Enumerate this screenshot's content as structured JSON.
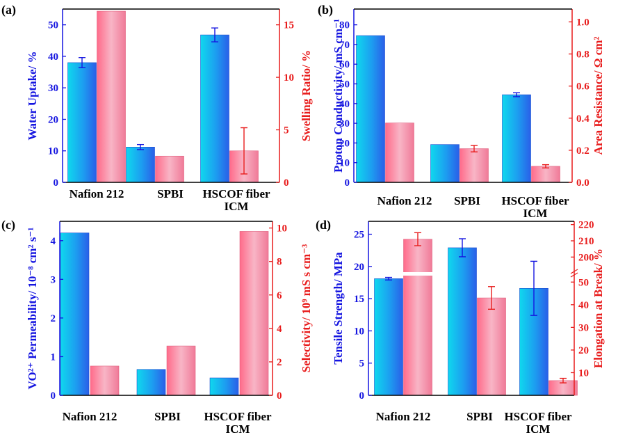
{
  "colors": {
    "blue_series": "#1ea8f0",
    "red_series": "#f5a3b8",
    "blue_axis": "#1515e0",
    "red_axis": "#e81c1c",
    "error_blue": "#1515e0",
    "error_red": "#e81c1c"
  },
  "chart_data": [
    {
      "panel": "(a)",
      "type": "bar",
      "categories": [
        "Nafion 212",
        "SPBI",
        "HSCOF fiber\nICM"
      ],
      "series": [
        {
          "name": "Water Uptake",
          "axis": "left",
          "values": [
            38,
            11.2,
            46.8
          ],
          "errors": [
            1.6,
            0.8,
            2.2
          ]
        },
        {
          "name": "Swelling Ratio",
          "axis": "right",
          "values": [
            16.3,
            2.5,
            3.0
          ],
          "errors": [
            0,
            0,
            2.2
          ]
        }
      ],
      "ylabel": "Water Uptake/ %",
      "ylim": [
        0,
        55
      ],
      "yticks": [
        0,
        10,
        20,
        30,
        40,
        50
      ],
      "y2label": "Swelling Ratio/ %",
      "y2lim": [
        0,
        16.5
      ],
      "y2ticks": [
        0,
        5,
        10,
        15
      ]
    },
    {
      "panel": "(b)",
      "type": "bar",
      "categories": [
        "Nafion 212",
        "SPBI",
        "HSCOF fiber\nICM"
      ],
      "series": [
        {
          "name": "Proton Conductivity",
          "axis": "left",
          "values": [
            74.5,
            19.2,
            44.5
          ],
          "errors": [
            0,
            0,
            1.0
          ]
        },
        {
          "name": "Area Resistance",
          "axis": "right",
          "values": [
            0.37,
            0.21,
            0.1
          ],
          "errors": [
            0,
            0.02,
            0.01
          ]
        }
      ],
      "ylabel": "Proton Conductivity/ mS cm⁻¹",
      "ylim": [
        0,
        88
      ],
      "yticks": [
        0,
        10,
        20,
        30,
        40,
        50,
        60,
        70,
        80
      ],
      "y2label": "Area Resistance/ Ω cm²",
      "y2lim": [
        0,
        1.08
      ],
      "y2ticks": [
        "0.0",
        "0.2",
        "0.4",
        "0.6",
        "0.8",
        "1.0"
      ]
    },
    {
      "panel": "(c)",
      "type": "bar",
      "categories": [
        "Nafion 212",
        "SPBI",
        "HSCOF fiber\nICM"
      ],
      "series": [
        {
          "name": "VO2+ Permeability",
          "axis": "left",
          "values": [
            4.2,
            0.67,
            0.45
          ],
          "errors": [
            0,
            0,
            0
          ]
        },
        {
          "name": "Selectivity",
          "axis": "right",
          "values": [
            1.75,
            2.95,
            9.8
          ],
          "errors": [
            0,
            0,
            0
          ]
        }
      ],
      "ylabel": "VO²⁺ Permeability/ 10⁻⁸ cm² s⁻¹",
      "ylim": [
        0,
        4.5
      ],
      "yticks": [
        0,
        1,
        2,
        3,
        4
      ],
      "y2label": "Selectivity/ 10⁹ mS s cm⁻³",
      "y2lim": [
        0,
        10.4
      ],
      "y2ticks": [
        0,
        2,
        4,
        6,
        8,
        10
      ]
    },
    {
      "panel": "(d)",
      "type": "bar",
      "categories": [
        "Nafion 212",
        "SPBI",
        "HSCOF fiber\nICM"
      ],
      "series": [
        {
          "name": "Tensile Strength",
          "axis": "left",
          "values": [
            18.1,
            22.9,
            16.6
          ],
          "errors": [
            0.2,
            1.4,
            4.2
          ]
        },
        {
          "name": "Elongation at Break",
          "axis": "right",
          "values": [
            211,
            43,
            6.5
          ],
          "errors": [
            4,
            5,
            1
          ]
        }
      ],
      "ylabel": "Tensile Strength/ MPa",
      "ylim": [
        0,
        27
      ],
      "yticks": [
        0,
        5,
        10,
        15,
        20,
        25
      ],
      "y2label": "Elongation at Break/ %",
      "y2ticks": [
        10,
        20,
        30,
        40,
        50,
        200,
        210,
        220
      ],
      "y2_axis_break": [
        55,
        195
      ]
    }
  ]
}
